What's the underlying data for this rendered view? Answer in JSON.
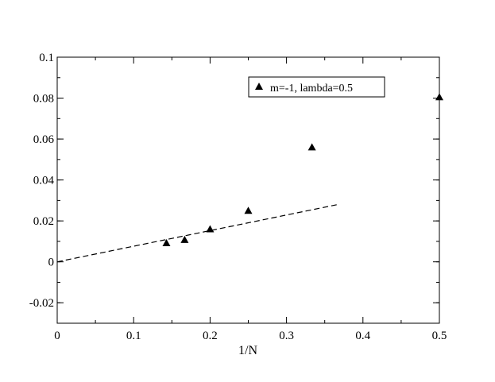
{
  "chart_data": {
    "type": "scatter",
    "title": "",
    "xlabel": "1/N",
    "ylabel": "",
    "xlim": [
      0,
      0.5
    ],
    "ylim": [
      -0.03,
      0.1
    ],
    "xticks": [
      0,
      0.1,
      0.2,
      0.3,
      0.4,
      0.5
    ],
    "xtick_labels": [
      "0",
      "0.1",
      "0.2",
      "0.3",
      "0.4",
      "0.5"
    ],
    "yticks": [
      -0.02,
      0,
      0.02,
      0.04,
      0.06,
      0.08,
      0.1
    ],
    "ytick_labels": [
      "-0.02",
      "0",
      "0.02",
      "0.04",
      "0.06",
      "0.08",
      "0.1"
    ],
    "grid": false,
    "legend_position": "top-right",
    "series": [
      {
        "name": "m=-1, lambda=0.5",
        "marker": "triangle",
        "color": "#000000",
        "x": [
          0.1429,
          0.1667,
          0.2,
          0.25,
          0.3333,
          0.5
        ],
        "y": [
          0.0092,
          0.0108,
          0.016,
          0.025,
          0.056,
          0.0805
        ]
      }
    ],
    "fit_line": {
      "style": "dashed",
      "color": "#000000",
      "x": [
        0,
        0.367
      ],
      "y": [
        0,
        0.028
      ]
    }
  }
}
